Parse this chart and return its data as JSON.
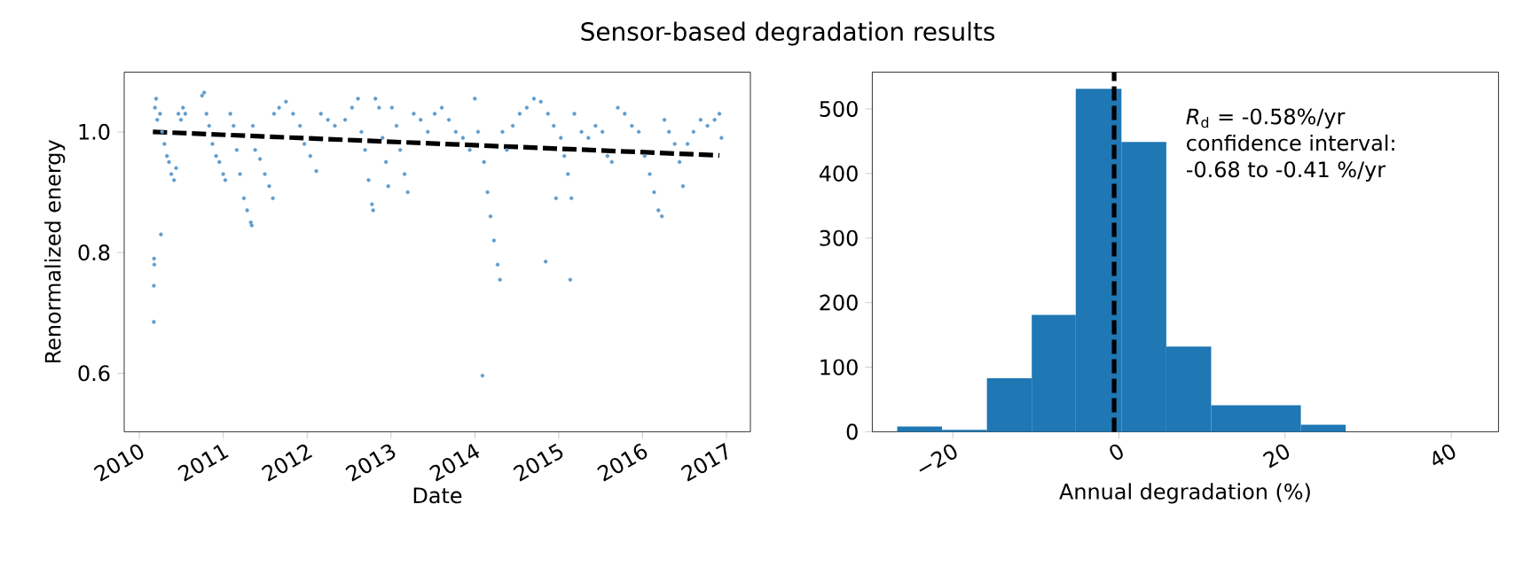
{
  "chart_data": [
    {
      "type": "scatter",
      "title": "Sensor-based degradation results",
      "xlabel": "Date",
      "ylabel": "Renormalized energy",
      "xlim": [
        "2009-10-27",
        "2017-04-15"
      ],
      "ylim": [
        0.503,
        1.099
      ],
      "xticks": [
        "2010",
        "2011",
        "2012",
        "2013",
        "2014",
        "2015",
        "2016",
        "2017"
      ],
      "yticks": [
        0.6,
        0.8,
        {
          "value": 1,
          "label": "1.0"
        }
      ],
      "series": [
        {
          "type": "scatter",
          "color": "#5f9ccd",
          "marker": "circle",
          "x": [
            "2010-03-05",
            "2010-03-05",
            "2010-03-06",
            "2010-03-07",
            "2010-03-10",
            "2010-03-15",
            "2010-03-20",
            "2010-04-01",
            "2010-04-05",
            "2010-04-10",
            "2010-04-20",
            "2010-05-01",
            "2010-05-10",
            "2010-05-20",
            "2010-06-01",
            "2010-06-10",
            "2010-06-20",
            "2010-07-01",
            "2010-07-10",
            "2010-07-20",
            "2010-10-01",
            "2010-10-10",
            "2010-10-20",
            "2010-11-01",
            "2010-11-15",
            "2010-12-01",
            "2010-12-15",
            "2011-01-01",
            "2011-01-10",
            "2011-02-01",
            "2011-02-15",
            "2011-03-01",
            "2011-03-15",
            "2011-04-01",
            "2011-04-15",
            "2011-05-01",
            "2011-05-05",
            "2011-05-10",
            "2011-05-20",
            "2011-06-10",
            "2011-07-01",
            "2011-07-20",
            "2011-08-05",
            "2011-08-10",
            "2011-09-01",
            "2011-10-01",
            "2011-11-01",
            "2011-12-01",
            "2011-12-20",
            "2012-01-15",
            "2012-02-10",
            "2012-03-01",
            "2012-04-01",
            "2012-05-01",
            "2012-06-15",
            "2012-07-15",
            "2012-08-10",
            "2012-08-25",
            "2012-09-10",
            "2012-09-25",
            "2012-10-10",
            "2012-10-15",
            "2012-10-25",
            "2012-11-10",
            "2012-11-25",
            "2012-12-10",
            "2012-12-20",
            "2013-01-05",
            "2013-01-25",
            "2013-02-10",
            "2013-03-01",
            "2013-03-15",
            "2013-04-10",
            "2013-05-10",
            "2013-06-10",
            "2013-07-10",
            "2013-08-10",
            "2013-09-10",
            "2013-10-10",
            "2013-11-10",
            "2013-12-10",
            "2014-01-01",
            "2014-01-15",
            "2014-02-03",
            "2014-02-10",
            "2014-02-25",
            "2014-03-10",
            "2014-03-25",
            "2014-04-10",
            "2014-04-20",
            "2014-05-01",
            "2014-05-20",
            "2014-06-15",
            "2014-07-15",
            "2014-08-15",
            "2014-09-15",
            "2014-10-15",
            "2014-11-05",
            "2014-11-15",
            "2014-12-10",
            "2014-12-20",
            "2015-01-10",
            "2015-01-25",
            "2015-02-10",
            "2015-02-20",
            "2015-02-25",
            "2015-03-10",
            "2015-04-10",
            "2015-05-10",
            "2015-06-10",
            "2015-07-10",
            "2015-08-01",
            "2015-08-20",
            "2015-09-15",
            "2015-10-15",
            "2015-11-15",
            "2015-12-15",
            "2016-01-10",
            "2016-02-01",
            "2016-02-20",
            "2016-03-10",
            "2016-03-25",
            "2016-04-05",
            "2016-04-25",
            "2016-05-20",
            "2016-06-10",
            "2016-06-25",
            "2016-07-15",
            "2016-08-10",
            "2016-09-10",
            "2016-10-10",
            "2016-11-10",
            "2016-12-01",
            "2016-12-10"
          ],
          "values": [
            0.685,
            0.745,
            0.79,
            0.78,
            1.04,
            1.055,
            1.02,
            1.03,
            0.83,
            1.0,
            0.98,
            0.96,
            0.95,
            0.93,
            0.92,
            0.94,
            1.03,
            1.02,
            1.04,
            1.03,
            1.06,
            1.065,
            1.03,
            1.01,
            0.98,
            0.96,
            0.95,
            0.93,
            0.92,
            1.03,
            1.01,
            0.97,
            0.93,
            0.89,
            0.87,
            0.85,
            0.845,
            1.01,
            0.97,
            0.955,
            0.93,
            0.91,
            0.89,
            1.03,
            1.04,
            1.05,
            1.03,
            1.01,
            0.98,
            0.96,
            0.935,
            1.03,
            1.02,
            1.01,
            1.02,
            1.04,
            1.055,
            1.0,
            0.97,
            0.92,
            0.88,
            0.87,
            1.055,
            1.04,
            0.99,
            0.95,
            0.91,
            1.04,
            1.01,
            0.97,
            0.93,
            0.9,
            1.03,
            1.02,
            1.0,
            1.03,
            1.04,
            1.02,
            1.0,
            0.99,
            0.97,
            1.055,
            1.0,
            0.596,
            0.95,
            0.9,
            0.86,
            0.82,
            0.78,
            0.755,
            1.0,
            0.97,
            1.01,
            1.03,
            1.04,
            1.055,
            1.05,
            0.785,
            1.03,
            1.01,
            0.89,
            0.99,
            0.96,
            0.93,
            0.755,
            0.89,
            1.03,
            1.0,
            0.99,
            1.01,
            1.0,
            0.96,
            0.95,
            1.04,
            1.03,
            1.01,
            1.0,
            0.96,
            0.93,
            0.9,
            0.87,
            0.86,
            1.02,
            1.0,
            0.98,
            0.95,
            0.91,
            0.98,
            1.0,
            1.02,
            1.01,
            1.02,
            1.03,
            0.99
          ]
        },
        {
          "type": "line",
          "color": "#000000",
          "line_style": "dashed",
          "marker": "none",
          "x": [
            "2010-03-01",
            "2016-12-01"
          ],
          "values": [
            1.0,
            0.961
          ]
        }
      ]
    },
    {
      "type": "histogram",
      "xlabel": "Annual degradation (%)",
      "color": "#1f77b4",
      "bins": [
        -26.7,
        -21.3,
        -15.9,
        -10.5,
        -5.2,
        0.3,
        5.7,
        11.1,
        16.5,
        21.9,
        27.3
      ],
      "values": [
        8,
        3,
        83,
        181,
        531,
        449,
        132,
        41,
        41,
        11
      ],
      "xlim": [
        -29.7,
        45.7
      ],
      "ylim": [
        0,
        557
      ],
      "xticks": [
        {
          "value": -20,
          "label": "−20"
        },
        0,
        20,
        40
      ],
      "yticks": [
        0,
        100,
        200,
        300,
        400,
        500
      ],
      "ref_lines": [
        {
          "axis": "x",
          "value": -0.58,
          "color": "#000000",
          "line_style": "dashed"
        }
      ],
      "annotations": [
        "*R*$_{d}$ = -0.58%/yr",
        "confidence interval:",
        "-0.68 to -0.41 %/yr"
      ]
    }
  ]
}
